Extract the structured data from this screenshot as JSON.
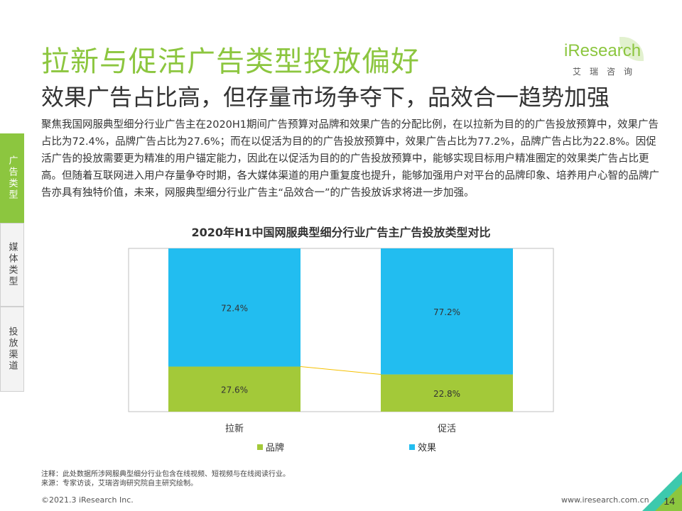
{
  "header": {
    "title": "拉新与促活广告类型投放偏好",
    "subtitle": "效果广告占比高，但存量市场争夺下，品效合一趋势加强"
  },
  "logo": {
    "word": "iResearch",
    "sub": "艾瑞咨询"
  },
  "body_text": "聚焦我国网服典型细分行业广告主在2020H1期间广告预算对品牌和效果广告的分配比例，在以拉新为目的的广告投放预算中，效果广告占比为72.4%，品牌广告占比为27.6%；而在以促活为目的的广告投放预算中，效果广告占比为77.2%，品牌广告占比为22.8%。因促活广告的投放需要更为精准的用户锚定能力，因此在以促活为目的的广告投放预算中，能够实现目标用户精准圈定的效果类广告占比更高。但随着互联网进入用户存量争夺时期，各大媒体渠道的用户重复度也提升，能够加强用户对平台的品牌印象、培养用户心智的品牌广告亦具有独特价值，未来，网服典型细分行业广告主“品效合一”的广告投放诉求将进一步加强。",
  "sidebar": {
    "tabs": [
      {
        "label": "广告类型",
        "active": true
      },
      {
        "label": "媒体类型",
        "active": false
      },
      {
        "label": "投放渠道",
        "active": false
      }
    ]
  },
  "chart_data": {
    "type": "bar",
    "stacked": true,
    "percent_stacked": true,
    "title": "2020年H1中国网服典型细分行业广告主广告投放类型对比",
    "categories": [
      "拉新",
      "促活"
    ],
    "series": [
      {
        "name": "品牌",
        "values": [
          27.6,
          22.8
        ],
        "labels": [
          "27.6%",
          "22.8%"
        ],
        "color": "#a3c939"
      },
      {
        "name": "效果",
        "values": [
          72.4,
          77.2
        ],
        "labels": [
          "72.4%",
          "77.2%"
        ],
        "color": "#22bdf0"
      }
    ],
    "ylim": [
      0,
      100
    ],
    "legend_position": "bottom",
    "grid": false,
    "connector_color": "#f5c000"
  },
  "notes": {
    "note": "注释：此处数据所涉网服典型细分行业包含在线视频、短视频与在线阅读行业。",
    "source": "来源：专家访谈，艾瑞咨询研究院自主研究绘制。"
  },
  "footer": {
    "copyright": "©2021.3 iResearch Inc.",
    "url": "www.iresearch.com.cn",
    "page": "14"
  },
  "colors": {
    "brand_green": "#8cc63f",
    "accent_teal": "#1bbf9f"
  }
}
